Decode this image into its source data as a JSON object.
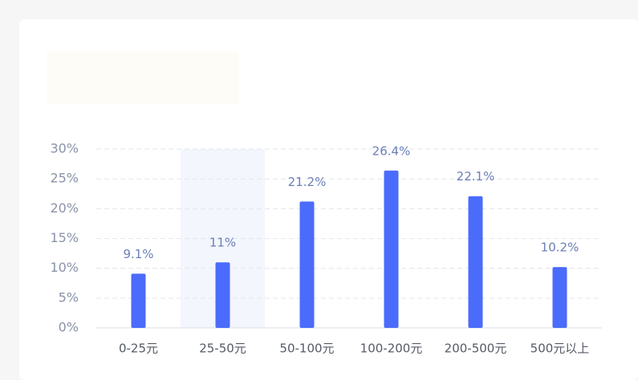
{
  "chart_data": {
    "type": "bar",
    "categories": [
      "0-25元",
      "25-50元",
      "50-100元",
      "100-200元",
      "200-500元",
      "500元以上"
    ],
    "values": [
      9.1,
      11,
      21.2,
      26.4,
      22.1,
      10.2
    ],
    "value_labels": [
      "9.1%",
      "11%",
      "21.2%",
      "26.4%",
      "22.1%",
      "10.2%"
    ],
    "color": "#4b6bfb",
    "ylim": [
      0,
      30
    ],
    "yticks": [
      {
        "value": 0,
        "label": "0%"
      },
      {
        "value": 5,
        "label": "5%"
      },
      {
        "value": 10,
        "label": "10%"
      },
      {
        "value": 15,
        "label": "15%"
      },
      {
        "value": 20,
        "label": "20%"
      },
      {
        "value": 25,
        "label": "25%"
      },
      {
        "value": 30,
        "label": "30%"
      }
    ],
    "grid": true
  }
}
